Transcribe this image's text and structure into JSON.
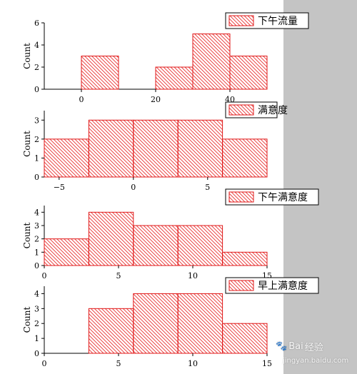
{
  "colors": {
    "bar_stroke": "#e01818",
    "hatch": "#e83030",
    "axis": "#000000",
    "side_panel": "#c4c4c4"
  },
  "watermark": {
    "brand": "Bai",
    "brand_cn": "经验",
    "sub": "jingyan.baidu.com"
  },
  "chart_data": [
    {
      "type": "bar",
      "legend": "下午流量",
      "ylabel": "Count",
      "xlim": [
        -10,
        50
      ],
      "ylim": [
        0,
        6
      ],
      "xticks": [
        0,
        20,
        40
      ],
      "yticks": [
        0,
        2,
        4,
        6
      ],
      "bin_edges": [
        0,
        10,
        20,
        30,
        40,
        50
      ],
      "values": [
        3,
        0,
        2,
        5,
        3
      ]
    },
    {
      "type": "bar",
      "legend": "满意度",
      "ylabel": "Count",
      "xlim": [
        -6,
        9
      ],
      "ylim": [
        0,
        3.5
      ],
      "xticks": [
        -5,
        0,
        5
      ],
      "yticks": [
        0,
        1,
        2,
        3
      ],
      "bin_edges": [
        -6,
        -3,
        0,
        3,
        6,
        9
      ],
      "values": [
        2,
        3,
        3,
        3,
        2
      ]
    },
    {
      "type": "bar",
      "legend": "下午满意度",
      "ylabel": "Count",
      "xlim": [
        0,
        15
      ],
      "ylim": [
        0,
        4.5
      ],
      "xticks": [
        0,
        5,
        10,
        15
      ],
      "yticks": [
        0,
        1,
        2,
        3,
        4
      ],
      "bin_edges": [
        0,
        3,
        6,
        9,
        12,
        15
      ],
      "values": [
        2,
        4,
        3,
        3,
        1
      ]
    },
    {
      "type": "bar",
      "legend": "早上满意度",
      "ylabel": "Count",
      "xlim": [
        0,
        15
      ],
      "ylim": [
        0,
        4.5
      ],
      "xticks": [
        0,
        5,
        10,
        15
      ],
      "yticks": [
        0,
        1,
        2,
        3,
        4
      ],
      "bin_edges": [
        0,
        3,
        6,
        9,
        12,
        15
      ],
      "values": [
        0,
        3,
        4,
        4,
        2
      ]
    }
  ]
}
